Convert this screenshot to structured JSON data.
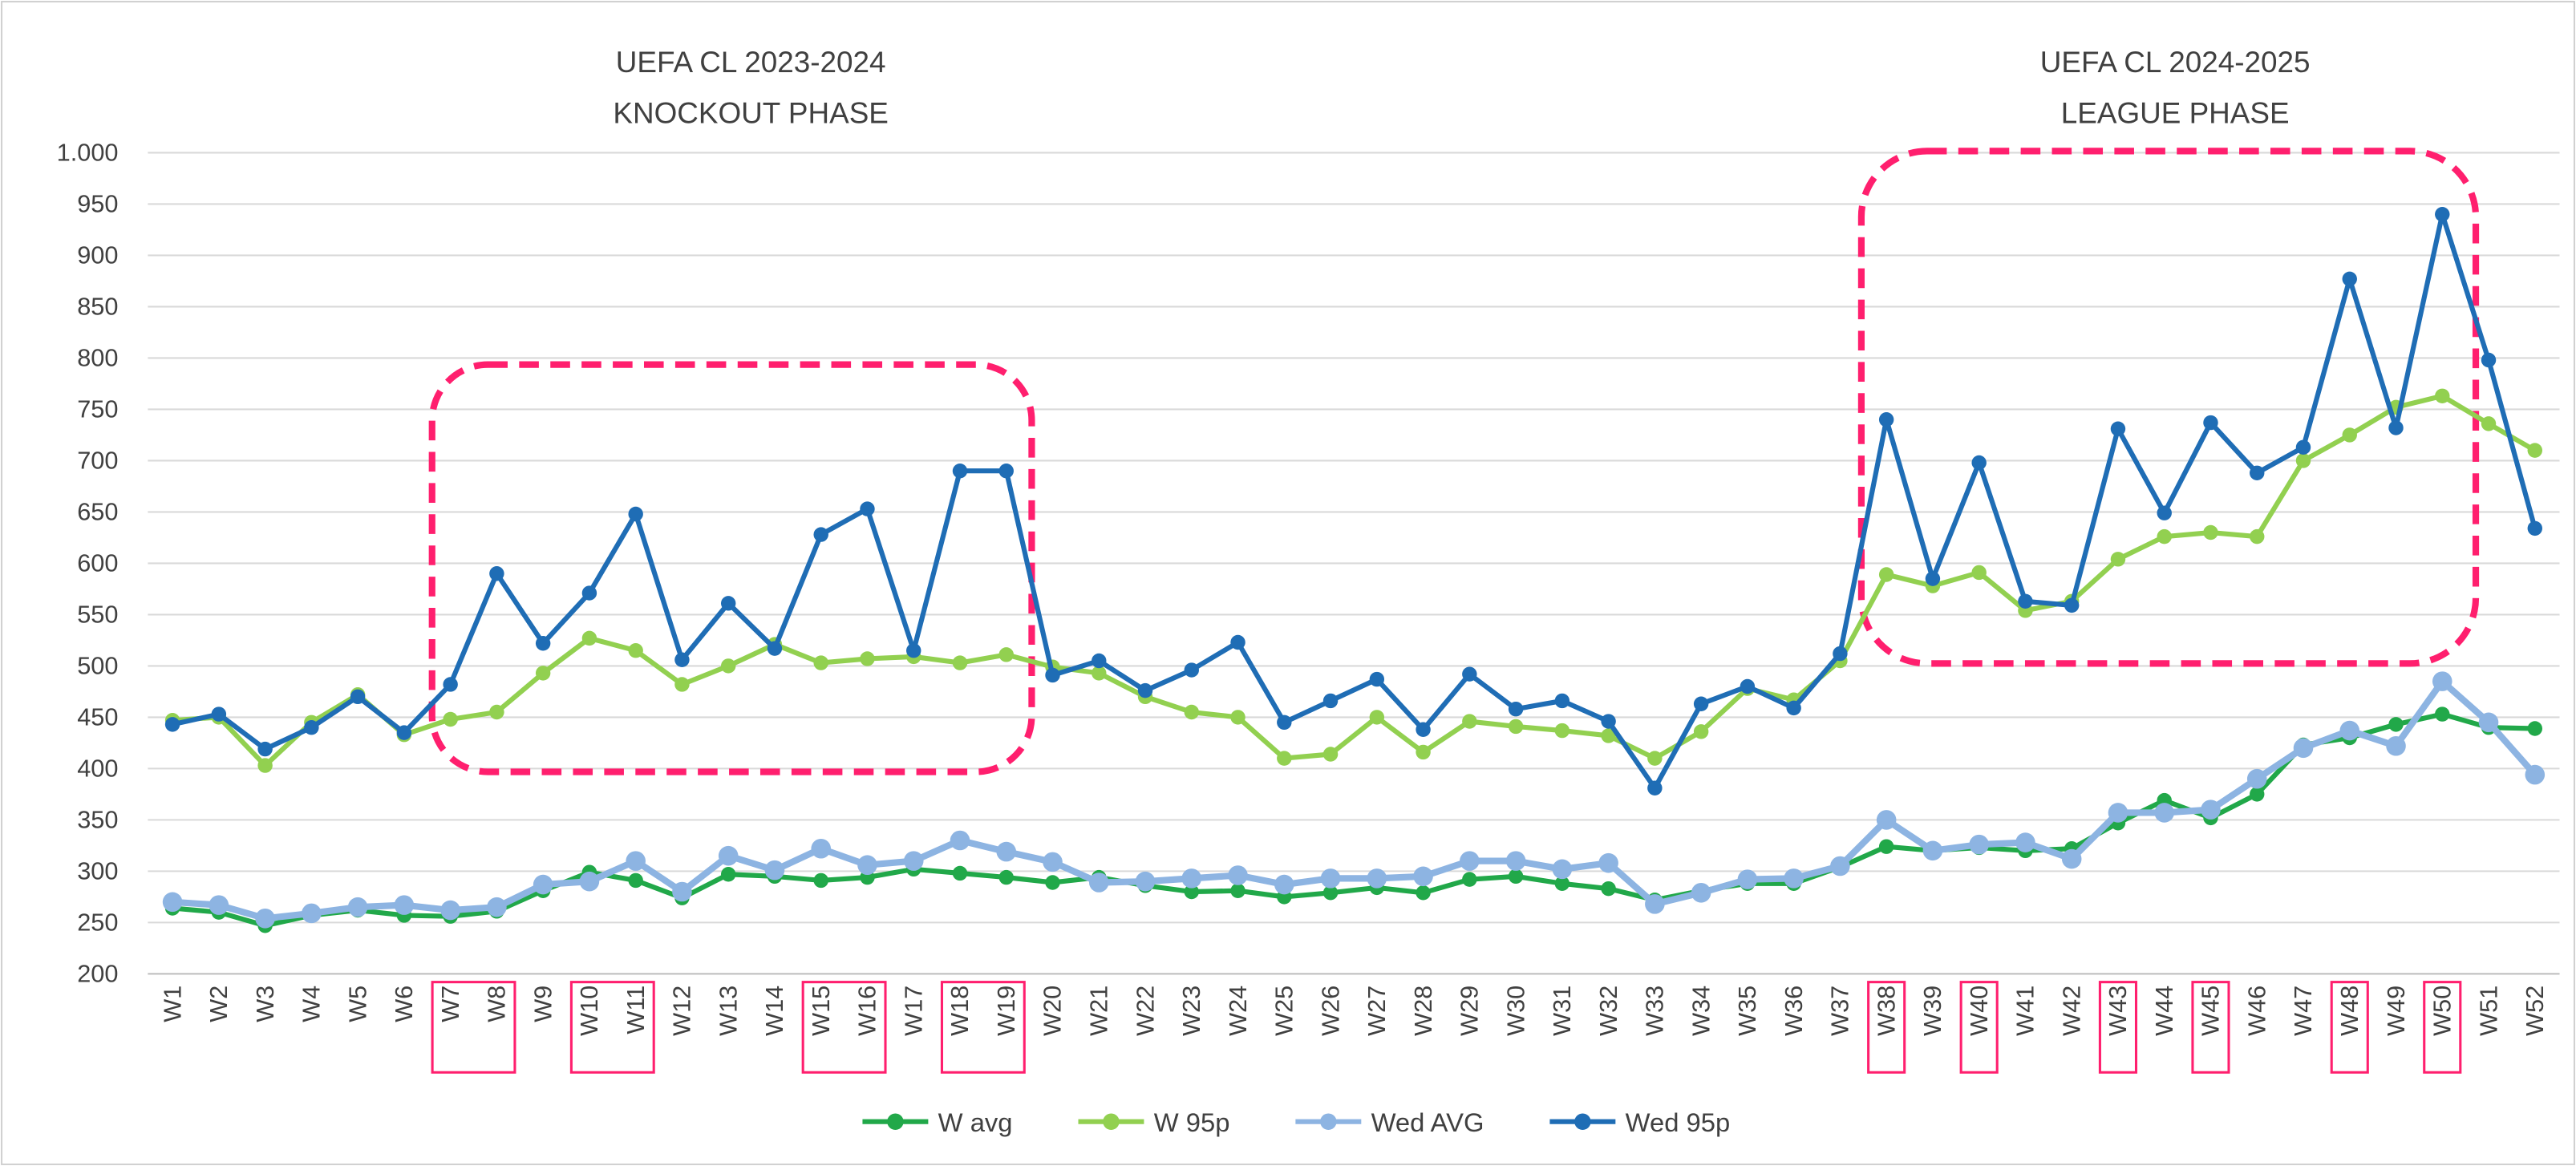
{
  "chart_data": {
    "type": "line",
    "annotations": [
      "UEFA CL 2023-2024",
      "KNOCKOUT PHASE",
      "UEFA CL 2024-2025",
      "LEAGUE PHASE"
    ],
    "categories": [
      "W1",
      "W2",
      "W3",
      "W4",
      "W5",
      "W6",
      "W7",
      "W8",
      "W9",
      "W10",
      "W11",
      "W12",
      "W13",
      "W14",
      "W15",
      "W16",
      "W17",
      "W18",
      "W19",
      "W20",
      "W21",
      "W22",
      "W23",
      "W24",
      "W25",
      "W26",
      "W27",
      "W28",
      "W29",
      "W30",
      "W31",
      "W32",
      "W33",
      "W34",
      "W35",
      "W36",
      "W37",
      "W38",
      "W39",
      "W40",
      "W41",
      "W42",
      "W43",
      "W44",
      "W45",
      "W46",
      "W47",
      "W48",
      "W49",
      "W50",
      "W51",
      "W52"
    ],
    "series": [
      {
        "name": "W avg",
        "color": "#21a849",
        "values": [
          264,
          260,
          247,
          257,
          262,
          257,
          256,
          261,
          281,
          299,
          291,
          274,
          297,
          295,
          291,
          294,
          302,
          298,
          294,
          289,
          294,
          286,
          280,
          281,
          275,
          279,
          284,
          279,
          292,
          295,
          288,
          283,
          272,
          281,
          288,
          288,
          304,
          324,
          320,
          323,
          320,
          322,
          347,
          369,
          352,
          375,
          423,
          430,
          443,
          453,
          440,
          439
        ]
      },
      {
        "name": "W 95p",
        "color": "#92d050",
        "values": [
          447,
          450,
          403,
          445,
          472,
          433,
          448,
          455,
          493,
          527,
          515,
          482,
          500,
          521,
          503,
          507,
          509,
          503,
          511,
          499,
          493,
          470,
          455,
          450,
          410,
          414,
          450,
          416,
          446,
          441,
          437,
          432,
          410,
          436,
          478,
          467,
          505,
          589,
          578,
          591,
          554,
          563,
          604,
          626,
          630,
          626,
          700,
          725,
          752,
          763,
          736,
          710
        ]
      },
      {
        "name": "Wed AVG",
        "color": "#8db4e2",
        "values": [
          270,
          267,
          254,
          259,
          265,
          267,
          262,
          265,
          287,
          290,
          310,
          280,
          315,
          301,
          322,
          306,
          310,
          330,
          319,
          309,
          289,
          290,
          293,
          296,
          287,
          293,
          293,
          295,
          310,
          310,
          302,
          308,
          268,
          279,
          292,
          293,
          305,
          350,
          320,
          326,
          328,
          312,
          357,
          357,
          360,
          390,
          420,
          437,
          422,
          485,
          445,
          394
        ]
      },
      {
        "name": "Wed 95p",
        "color": "#1f6db5",
        "values": [
          443,
          453,
          419,
          440,
          470,
          435,
          482,
          590,
          522,
          571,
          648,
          506,
          561,
          517,
          628,
          653,
          515,
          690,
          690,
          491,
          505,
          476,
          496,
          523,
          445,
          466,
          487,
          438,
          492,
          458,
          466,
          446,
          381,
          463,
          480,
          459,
          512,
          740,
          585,
          698,
          563,
          559,
          731,
          649,
          737,
          688,
          713,
          877,
          732,
          940,
          798,
          634
        ]
      }
    ],
    "ylim": [
      200,
      1000
    ],
    "yticks": [
      200,
      250,
      300,
      350,
      400,
      450,
      500,
      550,
      600,
      650,
      700,
      750,
      800,
      850,
      900,
      950,
      {
        "value": 1000,
        "label": "1.000"
      }
    ],
    "grid": true
  }
}
